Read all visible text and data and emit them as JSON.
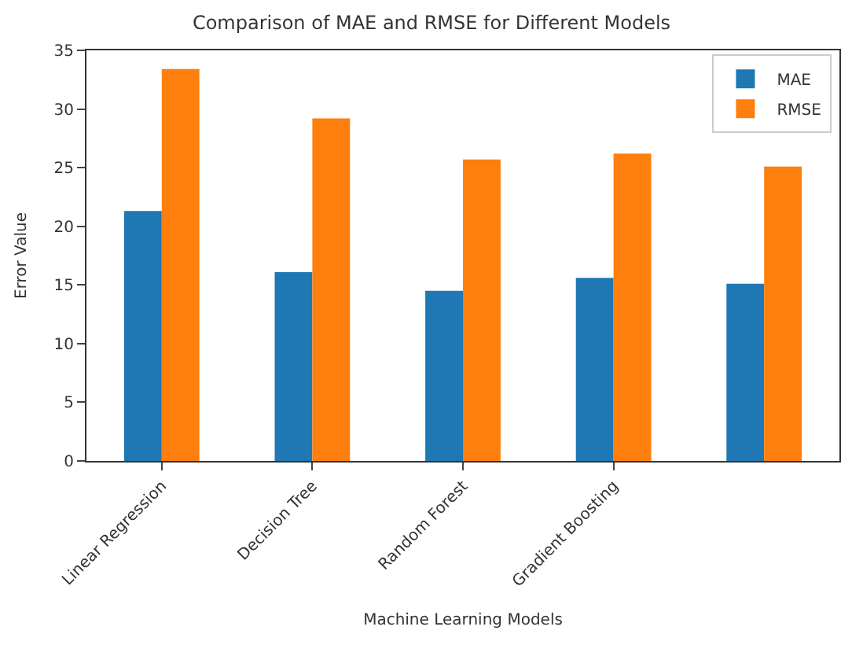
{
  "chart_data": {
    "type": "bar",
    "title": "Comparison of MAE and RMSE for Different Models",
    "xlabel": "Machine Learning Models",
    "ylabel": "Error Value",
    "categories": [
      "Linear Regression",
      "Decision Tree",
      "Random Forest",
      "Gradient Boosting",
      null
    ],
    "series": [
      {
        "name": "MAE",
        "color": "#1f77b4",
        "values": [
          21.3,
          16.1,
          14.5,
          15.6,
          15.1
        ]
      },
      {
        "name": "RMSE",
        "color": "#ff7f0e",
        "values": [
          33.4,
          29.2,
          25.7,
          26.2,
          25.1
        ]
      }
    ],
    "ylim": [
      0,
      35
    ],
    "yticks": [
      0,
      5,
      10,
      15,
      20,
      25,
      30,
      35
    ],
    "legend": "top right"
  }
}
